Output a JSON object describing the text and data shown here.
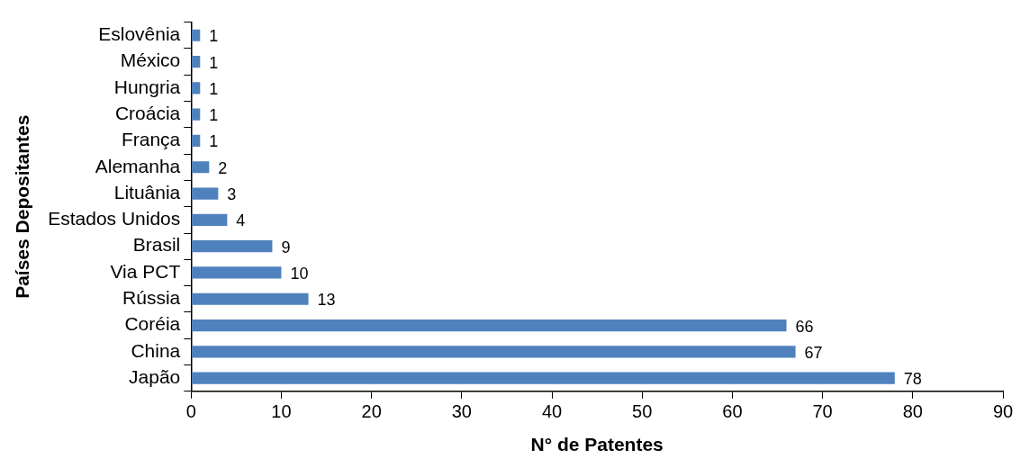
{
  "chart_data": {
    "type": "bar",
    "orientation": "horizontal",
    "xlabel": "N° de Patentes",
    "ylabel": "Países Depositantes",
    "categories": [
      "Eslovênia",
      "México",
      "Hungria",
      "Croácia",
      "França",
      "Alemanha",
      "Lituânia",
      "Estados Unidos",
      "Brasil",
      "Via PCT",
      "Rússia",
      "Coréia",
      "China",
      "Japão"
    ],
    "values": [
      1,
      1,
      1,
      1,
      1,
      2,
      3,
      4,
      9,
      10,
      13,
      66,
      67,
      78
    ],
    "color": "#4f81bd",
    "xlim": [
      0,
      90
    ],
    "xticks": [
      0,
      10,
      20,
      30,
      40,
      50,
      60,
      70,
      80,
      90
    ],
    "grid": false,
    "legend": false,
    "data_labels": true
  }
}
